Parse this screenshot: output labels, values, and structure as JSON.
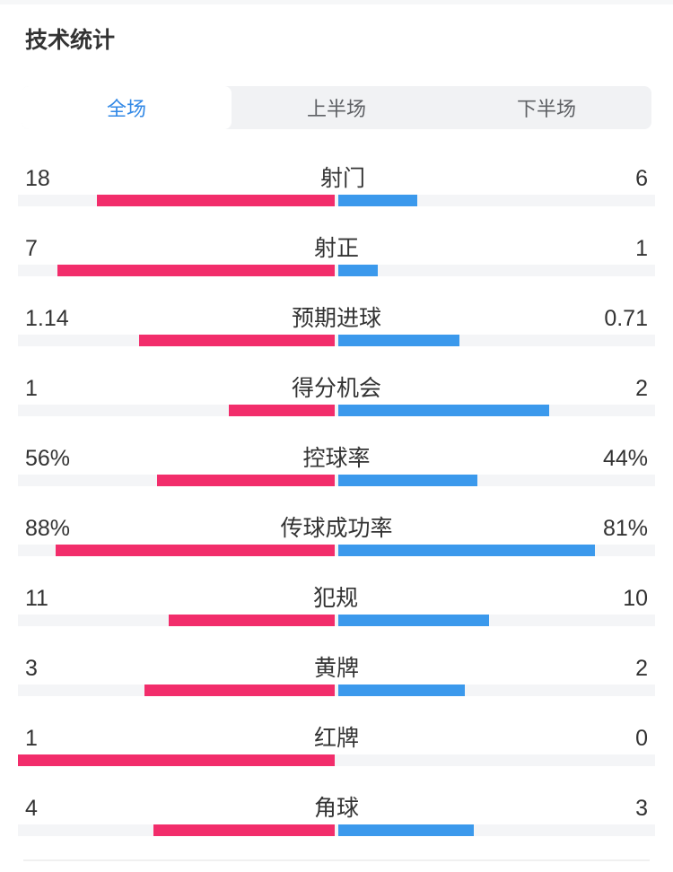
{
  "header": {
    "title": "技术统计"
  },
  "tabs": {
    "active_index": 0,
    "items": [
      {
        "label": "全场"
      },
      {
        "label": "上半场"
      },
      {
        "label": "下半场"
      }
    ]
  },
  "colors": {
    "home": "#f22d6b",
    "away": "#3b99ec",
    "track": "#f4f5f7",
    "tab_bg": "#f1f2f4",
    "tab_active_text": "#3389e6",
    "tab_inactive_text": "#606266",
    "text": "#333333",
    "divider": "#f0f0f0",
    "top_strip": "#f6f7f8"
  },
  "chart_data": {
    "type": "bar",
    "orientation": "horizontal-split-from-center",
    "home_side": "left",
    "away_side": "right",
    "home_color": "#f22d6b",
    "away_color": "#3b99ec",
    "legend_position": "none",
    "stats": [
      {
        "label": "射门",
        "home": "18",
        "away": "6",
        "percent": false
      },
      {
        "label": "射正",
        "home": "7",
        "away": "1",
        "percent": false
      },
      {
        "label": "预期进球",
        "home": "1.14",
        "away": "0.71",
        "percent": false
      },
      {
        "label": "得分机会",
        "home": "1",
        "away": "2",
        "percent": false
      },
      {
        "label": "控球率",
        "home": "56%",
        "away": "44%",
        "percent": true
      },
      {
        "label": "传球成功率",
        "home": "88%",
        "away": "81%",
        "percent": true
      },
      {
        "label": "犯规",
        "home": "11",
        "away": "10",
        "percent": false
      },
      {
        "label": "黄牌",
        "home": "3",
        "away": "2",
        "percent": false
      },
      {
        "label": "红牌",
        "home": "1",
        "away": "0",
        "percent": false
      },
      {
        "label": "角球",
        "home": "4",
        "away": "3",
        "percent": false
      }
    ]
  }
}
